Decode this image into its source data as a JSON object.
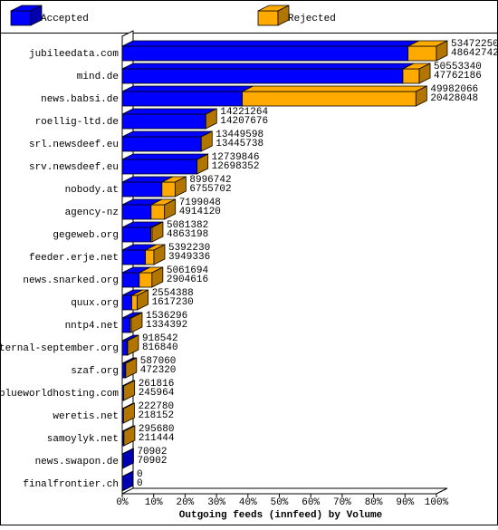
{
  "chart_data": {
    "type": "bar",
    "orientation": "horizontal",
    "stacked": true,
    "three_d": true,
    "x_label": "Outgoing feeds (innfeed) by Volume",
    "categories": [
      "jubileedata.com",
      "mind.de",
      "news.babsi.de",
      "roellig-ltd.de",
      "srl.newsdeef.eu",
      "srv.newsdeef.eu",
      "nobody.at",
      "agency-nz",
      "gegeweb.org",
      "feeder.erje.net",
      "news.snarked.org",
      "quux.org",
      "nntp4.net",
      "eternal-september.org",
      "szaf.org",
      "blueworldhosting.com",
      "weretis.net",
      "samoylyk.net",
      "news.swapon.de",
      "finalfrontier.ch"
    ],
    "totals": [
      53472250,
      50553340,
      49982066,
      14221264,
      13449598,
      12739846,
      8996742,
      7199048,
      5081382,
      5392230,
      5061694,
      2554388,
      1536296,
      918542,
      587060,
      261816,
      222780,
      295680,
      70902,
      0
    ],
    "series": [
      {
        "name": "Accepted",
        "color": "#0000ff",
        "values": [
          48642742,
          47762186,
          20428048,
          14207676,
          13445738,
          12698352,
          6755702,
          4914120,
          4863198,
          3949336,
          2904616,
          1617230,
          1334392,
          816840,
          472320,
          245964,
          218152,
          211444,
          70902,
          0
        ]
      },
      {
        "name": "Rejected",
        "color": "#ffaa00",
        "values": [
          4829508,
          2791154,
          29554018,
          13588,
          3860,
          41494,
          2241040,
          2284928,
          218184,
          1442894,
          2157078,
          937158,
          201904,
          101702,
          114740,
          15852,
          4628,
          84236,
          0,
          0
        ]
      }
    ],
    "xlim": [
      0,
      53472250
    ],
    "xticks": [
      {
        "value": 0,
        "label": "0%"
      },
      {
        "value": 5347225,
        "label": "10%"
      },
      {
        "value": 10694450,
        "label": "20%"
      },
      {
        "value": 16041675,
        "label": "30%"
      },
      {
        "value": 21388900,
        "label": "40%"
      },
      {
        "value": 26736125,
        "label": "50%"
      },
      {
        "value": 32083350,
        "label": "60%"
      },
      {
        "value": 37430575,
        "label": "70%"
      },
      {
        "value": 42777800,
        "label": "80%"
      },
      {
        "value": 48125025,
        "label": "90%"
      },
      {
        "value": 53472250,
        "label": "100%"
      }
    ]
  }
}
